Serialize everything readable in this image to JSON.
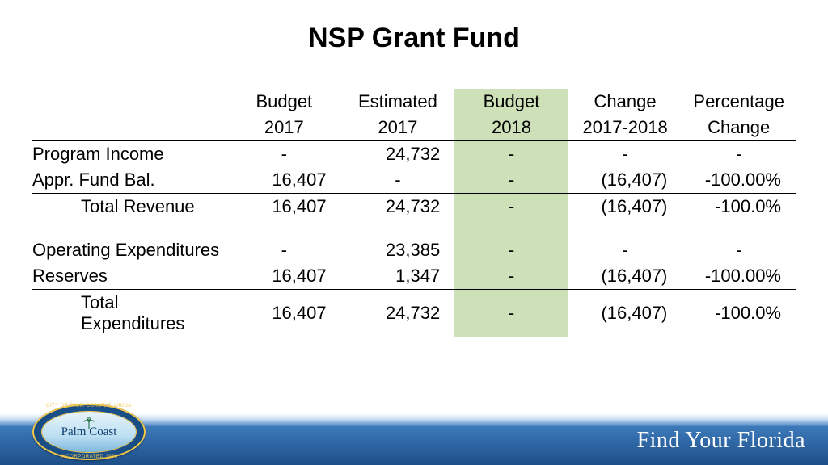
{
  "title": {
    "text": "NSP Grant Fund",
    "fontsize": 34,
    "color": "#000000"
  },
  "table": {
    "fontsize": 22,
    "highlight_color": "#cde0b8",
    "border_color": "#000000",
    "columns": [
      {
        "key": "label",
        "header_top": "",
        "header_bot": "",
        "highlight": false,
        "align": "left"
      },
      {
        "key": "b2017",
        "header_top": "Budget",
        "header_bot": "2017",
        "highlight": false,
        "align": "right"
      },
      {
        "key": "e2017",
        "header_top": "Estimated",
        "header_bot": "2017",
        "highlight": false,
        "align": "right"
      },
      {
        "key": "b2018",
        "header_top": "Budget",
        "header_bot": "2018",
        "highlight": true,
        "align": "right"
      },
      {
        "key": "chg",
        "header_top": "Change",
        "header_bot": "2017-2018",
        "highlight": false,
        "align": "right"
      },
      {
        "key": "pct",
        "header_top": "Percentage",
        "header_bot": "Change",
        "highlight": false,
        "align": "right"
      }
    ],
    "rows": [
      {
        "label": "Program Income",
        "b2017": "-",
        "e2017": "24,732",
        "b2018": "-",
        "chg": "-",
        "pct": "-",
        "indent": false,
        "total": false
      },
      {
        "label": "Appr. Fund Bal.",
        "b2017": "16,407",
        "e2017": "-",
        "b2018": "-",
        "chg": "(16,407)",
        "pct": "-100.00%",
        "indent": false,
        "total": false
      },
      {
        "label": "Total Revenue",
        "b2017": "16,407",
        "e2017": "24,732",
        "b2018": "-",
        "chg": "(16,407)",
        "pct": "-100.0%",
        "indent": true,
        "total": true
      },
      {
        "spacer": true
      },
      {
        "label": "Operating Expenditures",
        "b2017": "-",
        "e2017": "23,385",
        "b2018": "-",
        "chg": "-",
        "pct": "-",
        "indent": false,
        "total": false
      },
      {
        "label": "Reserves",
        "b2017": "16,407",
        "e2017": "1,347",
        "b2018": "-",
        "chg": "(16,407)",
        "pct": "-100.00%",
        "indent": false,
        "total": false
      },
      {
        "label": "Total Expenditures",
        "b2017": "16,407",
        "e2017": "24,732",
        "b2018": "-",
        "chg": "(16,407)",
        "pct": "-100.0%",
        "indent": true,
        "total": true
      }
    ]
  },
  "footer": {
    "band_gradient_top": "#c9def2",
    "band_gradient_mid": "#3d79ba",
    "band_gradient_bot": "#1d4f88",
    "slogan": "Find Your Florida",
    "slogan_color": "#ffffff",
    "slogan_fontsize": 28,
    "seal": {
      "top_arc": "CITY OF PALM COAST, FLORIDA",
      "center": "Palm Coast",
      "bottom_arc": "INCORPORATED 1999",
      "outer_color": "#164a82",
      "ring_color": "#f2c84b",
      "inner_sky": "#bcdff2"
    }
  }
}
